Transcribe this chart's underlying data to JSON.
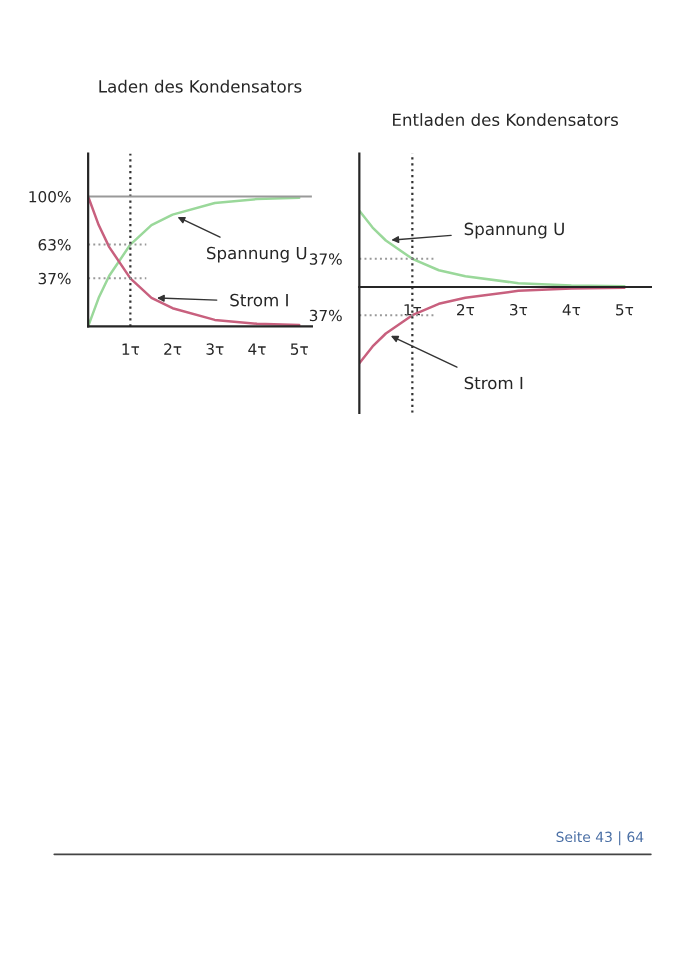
{
  "chart_data": [
    {
      "type": "line",
      "title": "Laden des Kondensators",
      "x": [
        0,
        0.25,
        0.5,
        1,
        1.5,
        2,
        3,
        4,
        5
      ],
      "series": [
        {
          "name": "Spannung U",
          "color": "#9ad89a",
          "values": [
            0,
            22,
            39,
            63,
            78,
            86,
            95,
            98,
            99
          ]
        },
        {
          "name": "Strom I",
          "color": "#c8607e",
          "values": [
            100,
            78,
            61,
            37,
            22,
            14,
            5,
            2,
            1
          ]
        }
      ],
      "xlim": [
        0,
        5.3
      ],
      "ylim": [
        0,
        133
      ],
      "xticks": [
        {
          "value": 1,
          "label": "1τ"
        },
        {
          "value": 2,
          "label": "2τ"
        },
        {
          "value": 3,
          "label": "3τ"
        },
        {
          "value": 4,
          "label": "4τ"
        },
        {
          "value": 5,
          "label": "5τ"
        }
      ],
      "yticks": [
        {
          "value": 37,
          "label": "37%"
        },
        {
          "value": 63,
          "label": "63%"
        },
        {
          "value": 100,
          "label": "100%"
        }
      ],
      "ref_lines": [
        {
          "axis": "x",
          "value": 1,
          "line_style": "dotted",
          "color": "#333333"
        },
        {
          "axis": "y",
          "value": 63,
          "line_style": "dotted",
          "color": "#999999"
        },
        {
          "axis": "y",
          "value": 37,
          "line_style": "dotted",
          "color": "#999999"
        },
        {
          "axis": "y",
          "value": 100,
          "line_style": "solid",
          "color": "#999999"
        }
      ],
      "annotations": [
        "Seite 43 | 64"
      ],
      "grid": false,
      "legend": false,
      "line_style": "solid"
    },
    {
      "type": "line",
      "title": "Entladen des Kondensators",
      "x": [
        0,
        0.25,
        0.5,
        1,
        1.5,
        2,
        3,
        4,
        5
      ],
      "series": [
        {
          "name": "Spannung U",
          "color": "#9ad89a",
          "values": [
            100,
            78,
            61,
            37,
            22,
            14,
            5,
            2,
            1
          ]
        },
        {
          "name": "Strom I",
          "color": "#c8607e",
          "values": [
            -100,
            -78,
            -61,
            -37,
            -22,
            -14,
            -5,
            -2,
            -1
          ]
        }
      ],
      "xlim": [
        0,
        5.5
      ],
      "ylim": [
        -165,
        175
      ],
      "xticks": [
        {
          "value": 1,
          "label": "1τ"
        },
        {
          "value": 2,
          "label": "2τ"
        },
        {
          "value": 3,
          "label": "3τ"
        },
        {
          "value": 4,
          "label": "4τ"
        },
        {
          "value": 5,
          "label": "5τ"
        }
      ],
      "yticks": [
        {
          "value": -37,
          "label": "37%"
        },
        {
          "value": 37,
          "label": "37%"
        }
      ],
      "ref_lines": [
        {
          "axis": "x",
          "value": 1,
          "line_style": "dotted",
          "color": "#333333"
        },
        {
          "axis": "y",
          "value": 37,
          "line_style": "dotted",
          "color": "#999999"
        },
        {
          "axis": "y",
          "value": -37,
          "line_style": "dotted",
          "color": "#999999"
        }
      ],
      "grid": false,
      "legend": false,
      "line_style": "solid"
    }
  ]
}
